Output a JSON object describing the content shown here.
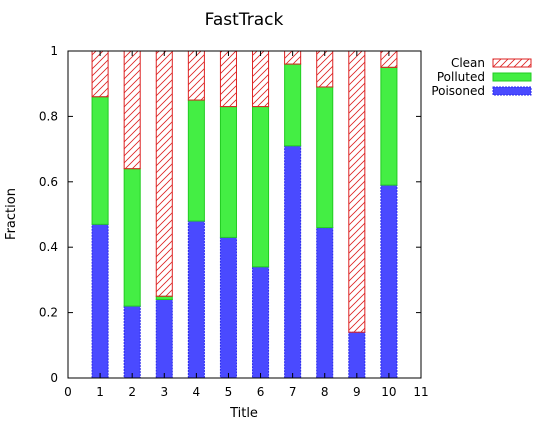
{
  "chart_data": {
    "type": "bar",
    "stacked": true,
    "title": "FastTrack",
    "xlabel": "Title",
    "ylabel": "Fraction",
    "xlim": [
      0,
      11
    ],
    "ylim": [
      0,
      1
    ],
    "x_ticks": [
      "0",
      "1",
      "2",
      "3",
      "4",
      "5",
      "6",
      "7",
      "8",
      "9",
      "10",
      "11"
    ],
    "y_ticks": [
      "0",
      "0.2",
      "0.4",
      "0.6",
      "0.8",
      "1"
    ],
    "categories": [
      1,
      2,
      3,
      4,
      5,
      6,
      7,
      8,
      9,
      10
    ],
    "legend_position": "outside-top-right",
    "grid": false,
    "series": [
      {
        "name": "Poisoned",
        "color": "#4a4aff",
        "pattern": "dotted-fill",
        "values": [
          0.47,
          0.22,
          0.24,
          0.48,
          0.43,
          0.34,
          0.71,
          0.46,
          0.14,
          0.59
        ]
      },
      {
        "name": "Polluted",
        "color": "#44ee44",
        "pattern": "solid",
        "values": [
          0.39,
          0.42,
          0.01,
          0.37,
          0.4,
          0.49,
          0.25,
          0.43,
          0.0,
          0.36
        ]
      },
      {
        "name": "Clean",
        "color": "#dd2222",
        "pattern": "hatched",
        "values": [
          0.14,
          0.36,
          0.75,
          0.15,
          0.17,
          0.17,
          0.04,
          0.11,
          0.86,
          0.05
        ]
      }
    ]
  }
}
